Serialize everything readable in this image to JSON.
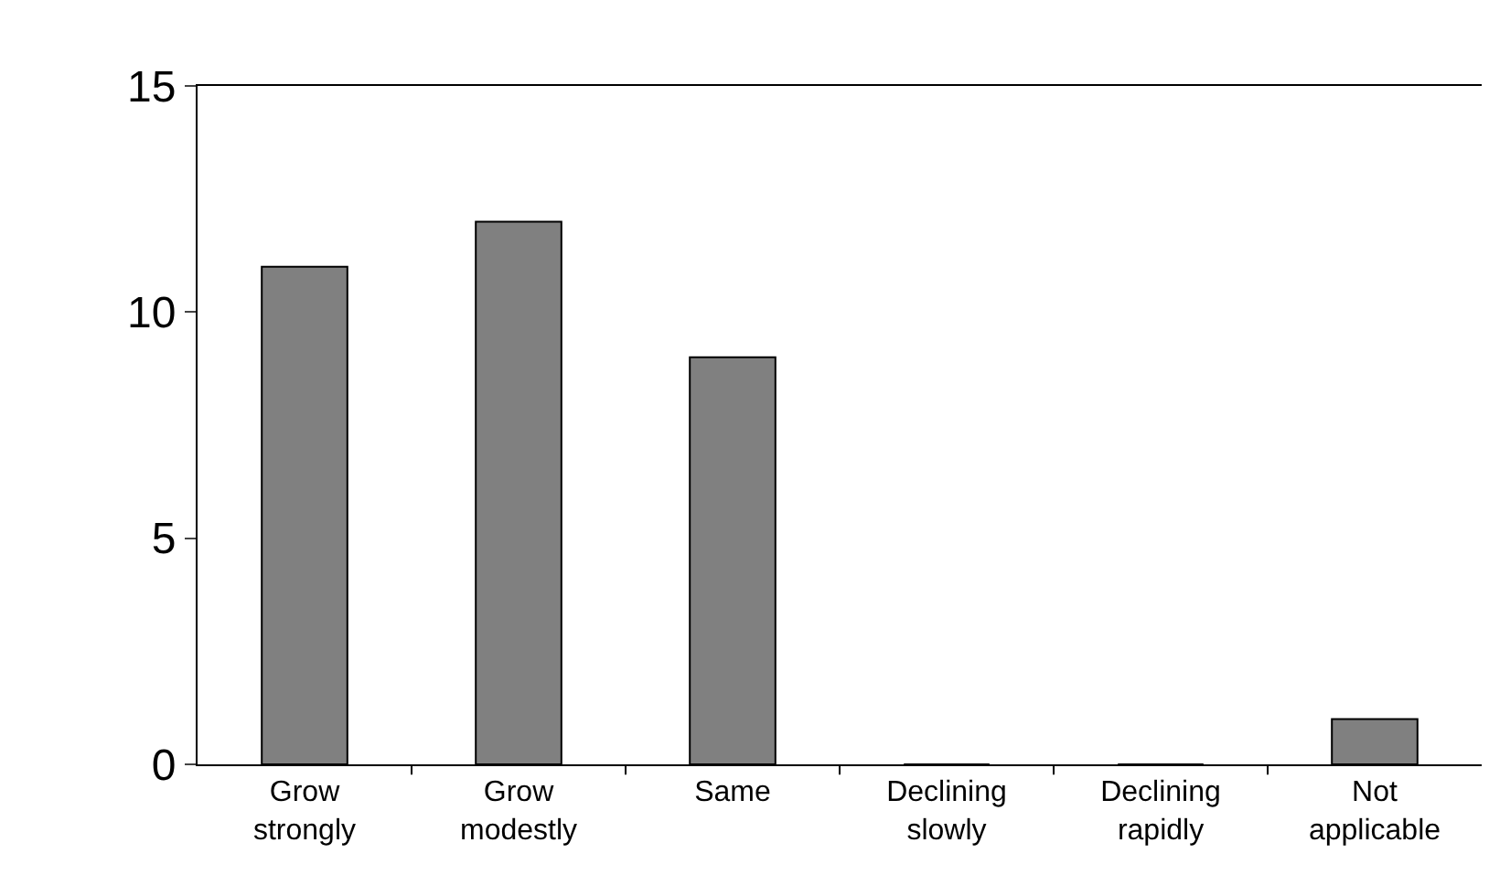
{
  "chart_data": {
    "type": "bar",
    "categories": [
      "Grow strongly",
      "Grow modestly",
      "Same",
      "Declining slowly",
      "Declining rapidly",
      "Not applicable"
    ],
    "values": [
      11,
      12,
      9,
      0,
      0,
      1
    ],
    "color": "#808080",
    "ylim": [
      0,
      15
    ],
    "yticks": [
      0,
      5,
      10,
      15
    ],
    "grid": false
  }
}
